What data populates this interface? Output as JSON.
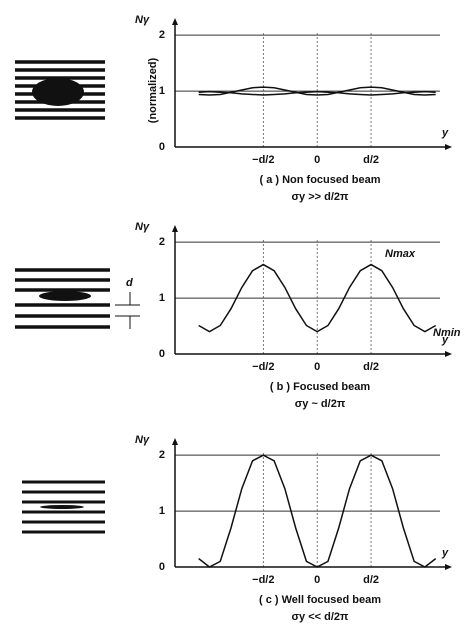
{
  "chart_data": [
    {
      "type": "line",
      "ylabel": "Nγ",
      "ylabel2": "(normalized)",
      "xlabel": "y",
      "title": "( a ) Non focused beam",
      "subtitle": "σy >> d/2π",
      "x": [
        -1.1,
        -1.0,
        -0.9,
        -0.8,
        -0.7,
        -0.6,
        -0.5,
        -0.4,
        -0.3,
        -0.2,
        -0.1,
        0,
        0.1,
        0.2,
        0.3,
        0.4,
        0.5,
        0.6,
        0.7,
        0.8,
        0.9,
        1.0,
        1.1
      ],
      "series": [
        {
          "color": "#111",
          "values": [
            0.94,
            0.93,
            0.94,
            0.98,
            1.02,
            1.06,
            1.07,
            1.06,
            1.02,
            0.98,
            0.94,
            0.93,
            0.94,
            0.98,
            1.02,
            1.06,
            1.07,
            1.06,
            1.02,
            0.98,
            0.94,
            0.93,
            0.94
          ]
        },
        {
          "color": "#111",
          "values": [
            0.98,
            0.99,
            0.98,
            0.97,
            0.95,
            0.94,
            0.93,
            0.94,
            0.95,
            0.97,
            0.98,
            0.99,
            0.98,
            0.97,
            0.95,
            0.94,
            0.93,
            0.94,
            0.95,
            0.97,
            0.98,
            0.99,
            0.98
          ]
        }
      ],
      "xlim": [
        -1.32,
        1.14
      ],
      "ylim": [
        0,
        2.2
      ],
      "xticks": [
        {
          "value": -0.5,
          "label": "−d/2"
        },
        0,
        {
          "value": 0.5,
          "label": "d/2"
        }
      ],
      "yticks": [
        0,
        1,
        2
      ],
      "grid": true
    },
    {
      "type": "line",
      "ylabel": "Nγ",
      "xlabel": "y",
      "title": "( b ) Focused beam",
      "subtitle": "σy ~ d/2π",
      "annotations": [
        "Nmax",
        "Nmin",
        "d"
      ],
      "x": [
        -1.1,
        -1.0,
        -0.9,
        -0.8,
        -0.7,
        -0.6,
        -0.5,
        -0.4,
        -0.3,
        -0.2,
        -0.1,
        0,
        0.1,
        0.2,
        0.3,
        0.4,
        0.5,
        0.6,
        0.7,
        0.8,
        0.9,
        1.0,
        1.1
      ],
      "series": [
        {
          "color": "#111",
          "values": [
            0.51,
            0.4,
            0.51,
            0.81,
            1.19,
            1.49,
            1.6,
            1.49,
            1.19,
            0.81,
            0.51,
            0.4,
            0.51,
            0.81,
            1.19,
            1.49,
            1.6,
            1.49,
            1.19,
            0.81,
            0.51,
            0.4,
            0.51
          ]
        }
      ],
      "xlim": [
        -1.32,
        1.14
      ],
      "ylim": [
        0,
        2.2
      ],
      "xticks": [
        {
          "value": -0.5,
          "label": "−d/2"
        },
        0,
        {
          "value": 0.5,
          "label": "d/2"
        }
      ],
      "yticks": [
        0,
        1,
        2
      ],
      "grid": true
    },
    {
      "type": "line",
      "ylabel": "Nγ",
      "xlabel": "y",
      "title": "( c ) Well focused beam",
      "subtitle": "σy << d/2π",
      "x": [
        -1.1,
        -1.0,
        -0.9,
        -0.8,
        -0.7,
        -0.6,
        -0.5,
        -0.4,
        -0.3,
        -0.2,
        -0.1,
        0,
        0.1,
        0.2,
        0.3,
        0.4,
        0.5,
        0.6,
        0.7,
        0.8,
        0.9,
        1.0,
        1.1
      ],
      "series": [
        {
          "color": "#111",
          "values": [
            0.15,
            0,
            0.1,
            0.7,
            1.4,
            1.9,
            2,
            1.9,
            1.4,
            0.7,
            0.1,
            0,
            0.1,
            0.7,
            1.4,
            1.9,
            2,
            1.9,
            1.4,
            0.7,
            0.1,
            0,
            0.15
          ]
        }
      ],
      "xlim": [
        -1.32,
        1.14
      ],
      "ylim": [
        0,
        2.2
      ],
      "xticks": [
        {
          "value": -0.5,
          "label": "−d/2"
        },
        0,
        {
          "value": 0.5,
          "label": "d/2"
        }
      ],
      "yticks": [
        0,
        1,
        2
      ],
      "grid": true
    }
  ]
}
